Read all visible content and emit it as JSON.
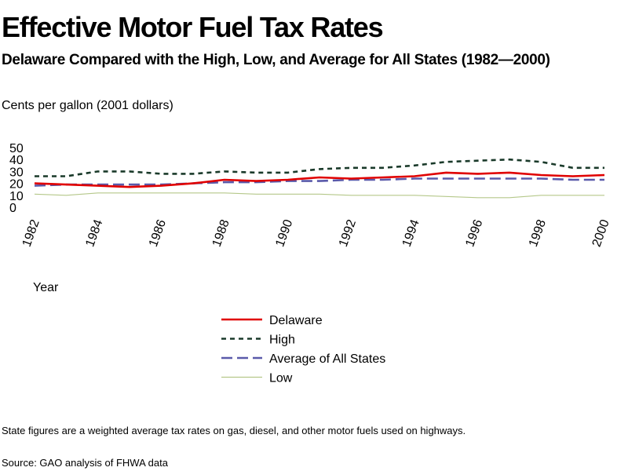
{
  "header": {
    "title": "Effective Motor Fuel Tax Rates",
    "subtitle": "Delaware Compared with the High, Low, and Average for All States (1982—2000)",
    "units": "Cents per gallon   (2001 dollars)"
  },
  "footer": {
    "note": "State figures are a weighted average tax rates on gas, diesel, and other motor fuels used on highways.",
    "source": "Source: GAO analysis of FHWA data"
  },
  "chart_data": {
    "type": "line",
    "title": "Effective Motor Fuel Tax Rates",
    "xlabel": "Year",
    "ylabel": "Cents per gallon   (2001 dollars)",
    "ylim": [
      0,
      50
    ],
    "yticks": [
      0,
      10,
      20,
      30,
      40,
      50
    ],
    "xticks": [
      "1982",
      "1984",
      "1986",
      "1988",
      "1990",
      "1992",
      "1994",
      "1996",
      "1998",
      "2000"
    ],
    "grid": false,
    "legend_position": "bottom-center",
    "x": [
      1982,
      1983,
      1984,
      1985,
      1986,
      1987,
      1988,
      1989,
      1990,
      1991,
      1992,
      1993,
      1994,
      1995,
      1996,
      1997,
      1998,
      1999,
      2000
    ],
    "series": [
      {
        "name": "Delaware",
        "color": "#e00000",
        "style": "solid",
        "values": [
          20,
          19,
          18,
          17,
          18,
          20,
          23,
          22,
          23,
          25,
          24,
          25,
          26,
          29,
          28,
          29,
          27,
          26,
          27
        ]
      },
      {
        "name": "High",
        "color": "#1a3a2a",
        "style": "short-dash",
        "values": [
          26,
          26,
          30,
          30,
          28,
          28,
          30,
          29,
          29,
          32,
          33,
          33,
          35,
          38,
          39,
          40,
          38,
          33,
          33
        ]
      },
      {
        "name": "Average of All States",
        "color": "#5a5aaa",
        "style": "long-dash",
        "values": [
          18,
          19,
          19,
          19,
          19,
          20,
          21,
          21,
          22,
          22,
          23,
          23,
          24,
          24,
          24,
          24,
          24,
          23,
          23
        ]
      },
      {
        "name": "Low",
        "color": "#b5c88a",
        "style": "solid-thin",
        "values": [
          11,
          10,
          12,
          12,
          12,
          12,
          12,
          11,
          11,
          11,
          10,
          10,
          10,
          9,
          8,
          8,
          10,
          10,
          10
        ]
      }
    ]
  }
}
